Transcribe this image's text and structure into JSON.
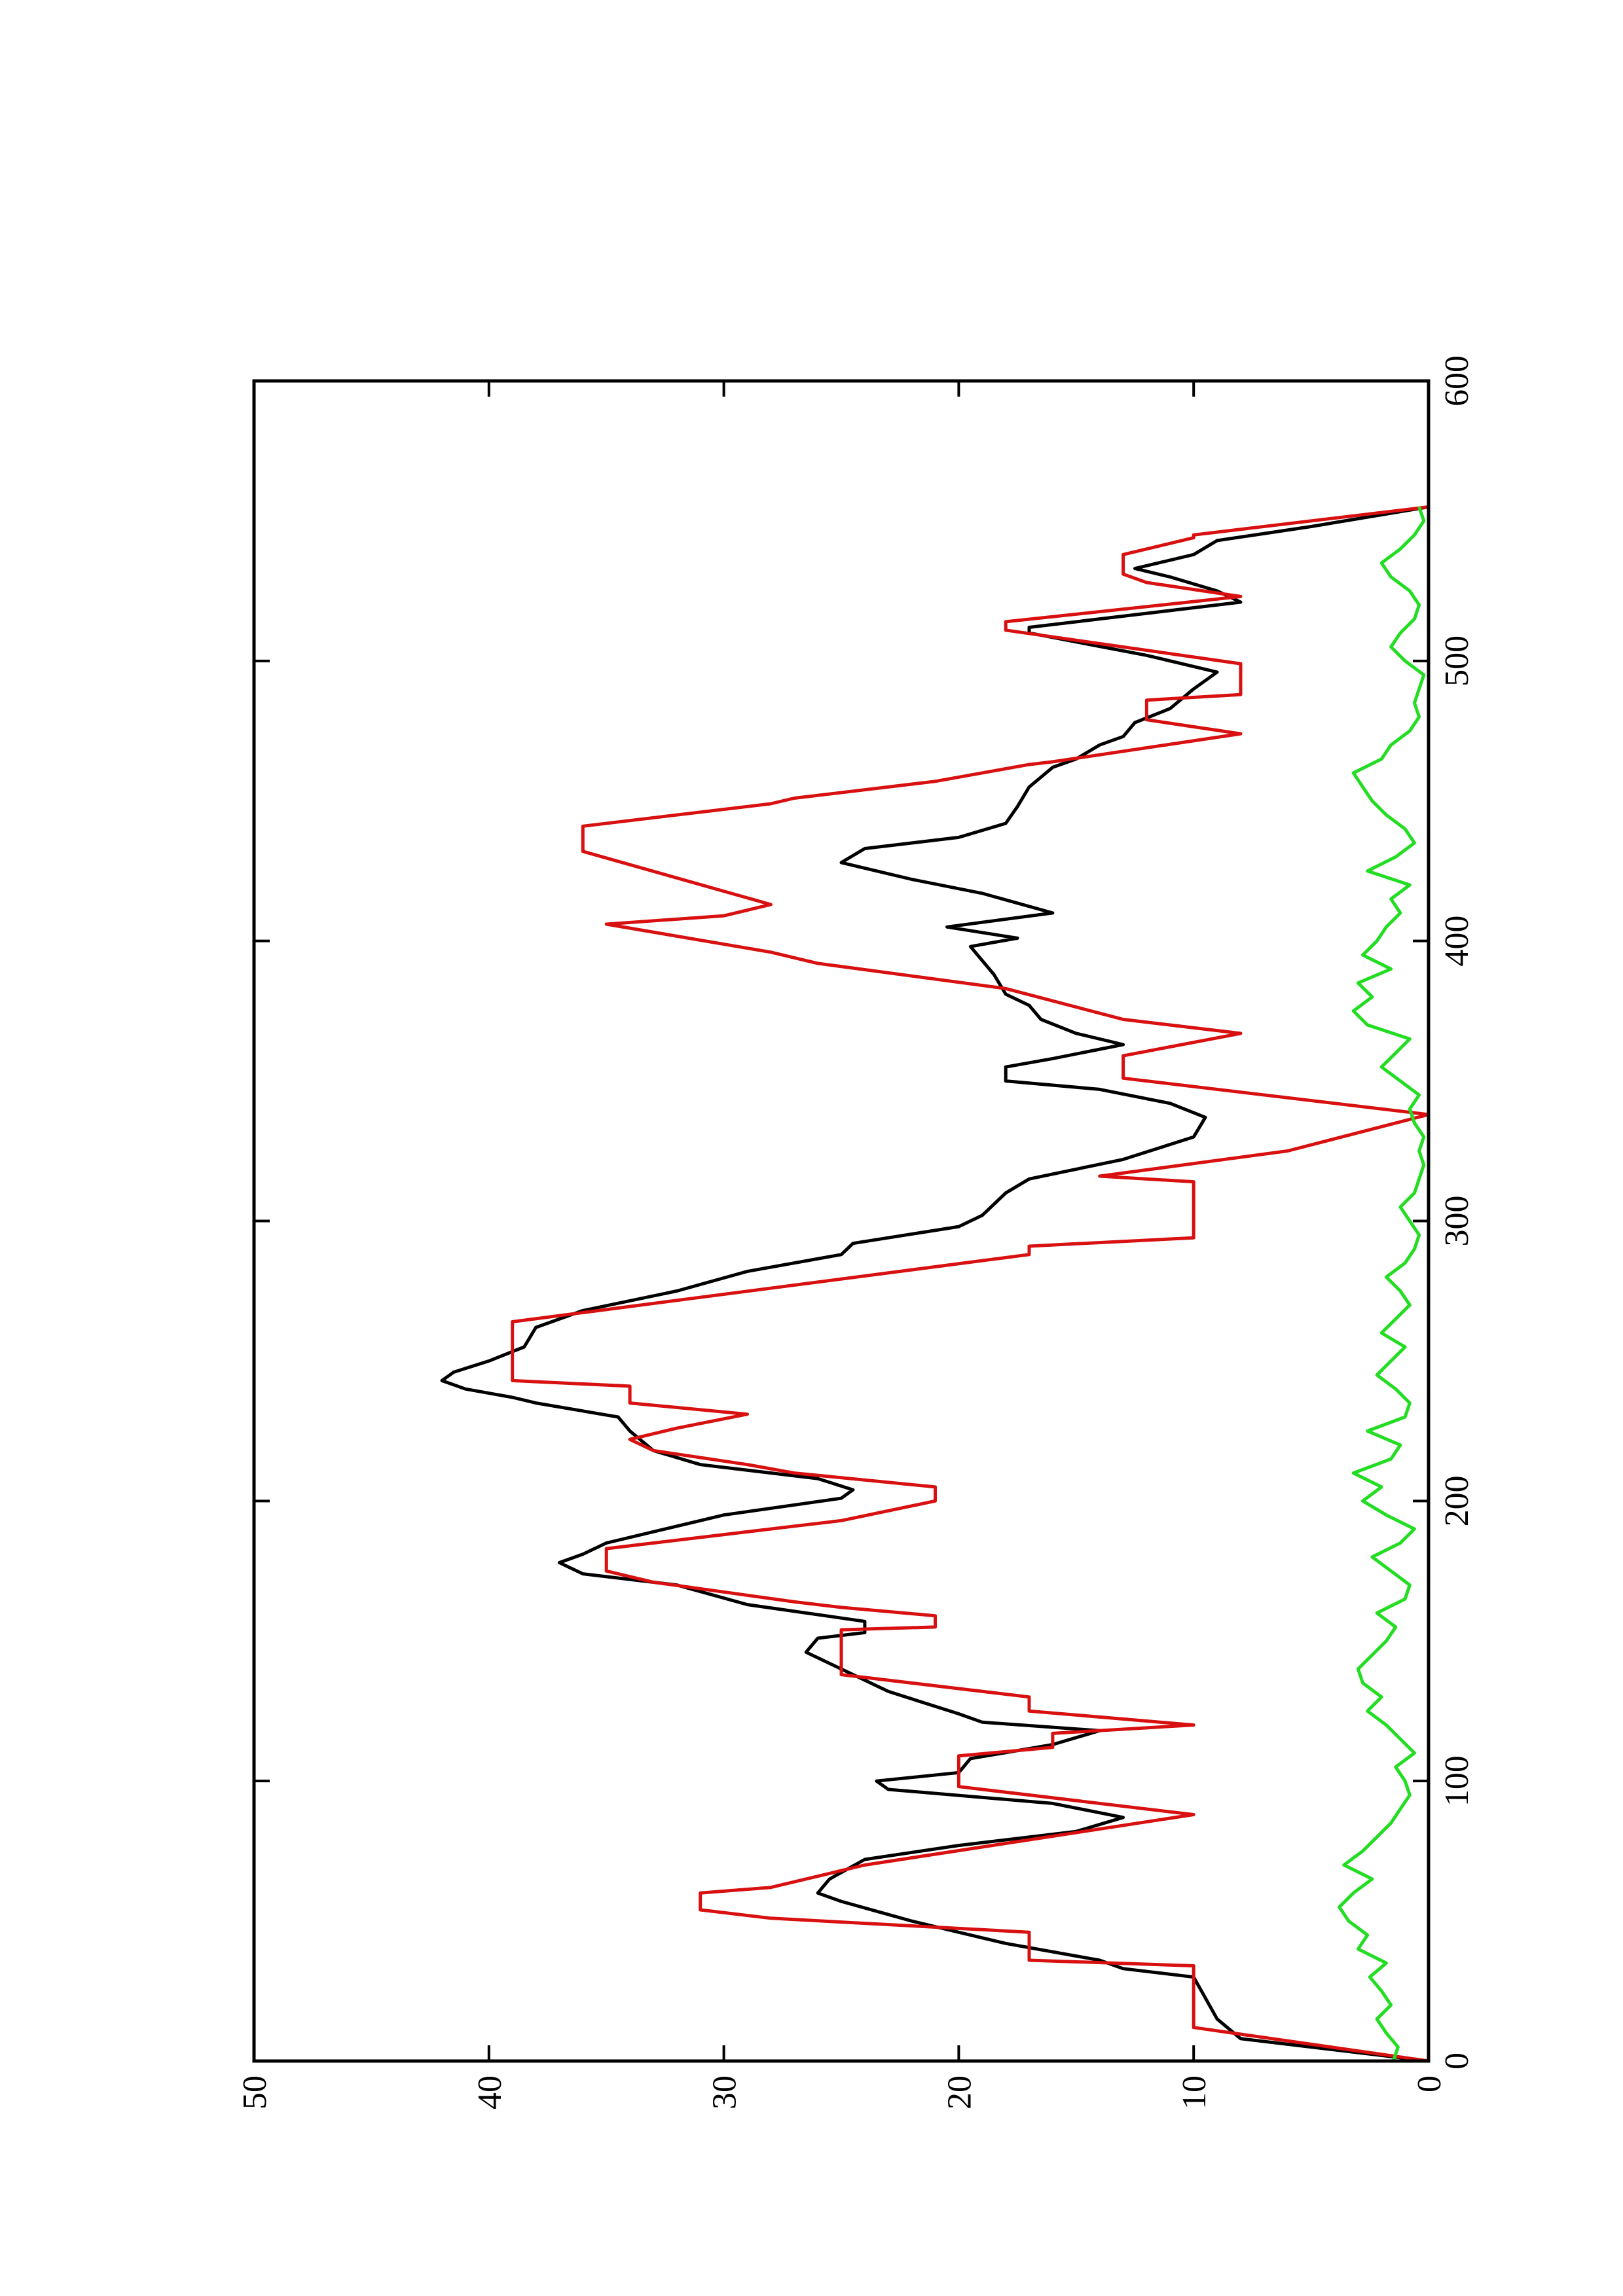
{
  "chart_data": {
    "type": "line",
    "xlim": [
      0,
      600
    ],
    "ylim": [
      0,
      50
    ],
    "xticks": [
      0,
      100,
      200,
      300,
      400,
      500,
      600
    ],
    "yticks": [
      0,
      10,
      20,
      30,
      40,
      50
    ],
    "series": [
      {
        "color": "#000000",
        "x": [
          0,
          5,
          8,
          15,
          30,
          33,
          36,
          42,
          50,
          57,
          60,
          65,
          72,
          77,
          82,
          87,
          92,
          97,
          100,
          103,
          108,
          113,
          118,
          121,
          124,
          132,
          140,
          146,
          151,
          153,
          157,
          163,
          170,
          174,
          178,
          181,
          185,
          193,
          195,
          201,
          204,
          208,
          213,
          218,
          225,
          230,
          235,
          237,
          240,
          243,
          246,
          250,
          255,
          262,
          268,
          275,
          282,
          288,
          292,
          298,
          302,
          310,
          315,
          322,
          330,
          337,
          342,
          347,
          350,
          355,
          358,
          363,
          367,
          372,
          377,
          381,
          388,
          393,
          398,
          401,
          405,
          410,
          417,
          422,
          428,
          433,
          437,
          442,
          448,
          455,
          462,
          465,
          470,
          473,
          478,
          483,
          490,
          496,
          502,
          510,
          512,
          517,
          521,
          525,
          530,
          533,
          538,
          543,
          548,
          555
        ],
        "values": [
          0,
          5,
          8,
          9,
          10,
          13,
          14,
          18,
          22,
          25,
          26,
          25.5,
          24,
          20,
          15,
          13,
          16,
          23,
          23.5,
          20,
          19.5,
          16,
          14,
          19,
          20,
          23,
          25,
          26.5,
          26,
          24,
          24,
          29,
          32,
          36,
          37,
          36,
          35,
          31,
          30,
          25,
          24.5,
          26,
          31,
          33,
          34,
          34.5,
          38,
          39,
          41,
          42,
          41.5,
          40,
          38.5,
          38,
          36,
          32,
          29,
          25,
          24.5,
          20,
          19,
          18,
          17,
          13,
          10,
          9.5,
          11,
          14,
          18,
          18,
          16,
          13,
          15,
          16.5,
          17,
          18,
          18.5,
          19,
          19.5,
          17.5,
          20.5,
          16,
          19,
          22,
          25,
          24,
          20,
          18,
          17.5,
          17,
          16,
          15,
          14,
          13,
          12.5,
          11,
          10,
          9,
          12,
          17,
          17,
          12,
          8,
          9,
          11,
          12.5,
          10,
          9,
          5,
          0
        ]
      },
      {
        "color": "#d81010",
        "x": [
          0,
          12,
          34,
          36,
          46,
          51,
          54,
          60,
          62,
          70,
          88,
          98,
          109,
          112,
          117,
          120,
          125,
          130,
          138,
          154,
          155,
          159,
          162,
          164,
          171,
          175,
          183,
          185,
          191,
          193,
          200,
          205,
          210,
          213,
          218,
          222,
          226,
          231,
          235,
          241,
          243,
          264,
          288,
          291,
          294,
          314,
          316,
          325,
          338,
          351,
          359,
          367,
          372,
          383,
          392,
          396,
          406,
          409,
          413,
          432,
          441,
          449,
          451,
          457,
          463,
          464,
          474,
          479,
          486,
          488,
          499,
          511,
          514,
          523,
          528,
          531,
          538,
          544,
          545,
          555
        ],
        "values": [
          0,
          10,
          10,
          17,
          17,
          28,
          31,
          31,
          28,
          24,
          10,
          20,
          20,
          16,
          16,
          10,
          17,
          17,
          25,
          25,
          21,
          21,
          25,
          27,
          33,
          35,
          35,
          33,
          27,
          25,
          21,
          21,
          27,
          29,
          33,
          34,
          32,
          29,
          34,
          34,
          39,
          39,
          17,
          17,
          10,
          10,
          14,
          6,
          0,
          13,
          13,
          8,
          13,
          18,
          26,
          28,
          35,
          30,
          28,
          36,
          36,
          28,
          27,
          21,
          17,
          16,
          8,
          12,
          12,
          8,
          8,
          18,
          18,
          8,
          12,
          13,
          13,
          10,
          10,
          0
        ]
      },
      {
        "color": "#22dd22",
        "x": [
          0,
          5,
          10,
          15,
          20,
          25,
          30,
          35,
          40,
          45,
          50,
          55,
          60,
          65,
          70,
          75,
          80,
          85,
          90,
          95,
          100,
          105,
          110,
          115,
          120,
          125,
          130,
          135,
          140,
          145,
          150,
          155,
          160,
          165,
          170,
          175,
          180,
          185,
          190,
          195,
          200,
          205,
          210,
          215,
          220,
          225,
          230,
          235,
          240,
          245,
          250,
          255,
          260,
          265,
          270,
          275,
          280,
          285,
          290,
          295,
          300,
          305,
          310,
          315,
          320,
          325,
          330,
          335,
          340,
          345,
          350,
          355,
          360,
          365,
          370,
          375,
          380,
          385,
          390,
          395,
          400,
          405,
          410,
          415,
          420,
          425,
          430,
          435,
          440,
          445,
          450,
          455,
          460,
          465,
          470,
          475,
          480,
          485,
          490,
          495,
          500,
          505,
          510,
          515,
          520,
          525,
          530,
          535,
          540,
          545,
          550,
          555
        ],
        "values": [
          1.5,
          1.3,
          1.8,
          2.2,
          1.6,
          2.0,
          2.5,
          1.8,
          3.0,
          2.6,
          3.4,
          3.8,
          3.2,
          2.4,
          3.6,
          2.8,
          2.2,
          1.6,
          1.2,
          0.8,
          1.0,
          1.4,
          0.6,
          1.2,
          1.8,
          2.6,
          2.0,
          2.8,
          3.0,
          2.4,
          1.8,
          1.4,
          2.2,
          1.0,
          0.8,
          1.6,
          2.4,
          1.2,
          0.6,
          1.8,
          2.8,
          2.0,
          3.2,
          1.6,
          1.2,
          2.6,
          1.0,
          0.8,
          1.4,
          2.2,
          1.6,
          1.0,
          2.0,
          1.4,
          0.8,
          1.2,
          1.8,
          1.0,
          0.6,
          0.4,
          0.8,
          1.2,
          0.6,
          0.4,
          0.2,
          0.4,
          0.2,
          0.6,
          0.8,
          0.4,
          1.2,
          2.0,
          1.4,
          0.8,
          2.6,
          3.2,
          2.4,
          3.0,
          1.6,
          2.8,
          2.2,
          1.8,
          1.2,
          1.6,
          0.8,
          2.6,
          1.4,
          0.6,
          1.0,
          1.8,
          2.4,
          2.8,
          3.2,
          2.0,
          1.6,
          0.8,
          0.4,
          0.6,
          0.4,
          0.2,
          1.0,
          1.6,
          1.2,
          0.6,
          0.4,
          0.8,
          1.6,
          2.0,
          1.2,
          0.6,
          0.2,
          0.4
        ]
      }
    ]
  }
}
